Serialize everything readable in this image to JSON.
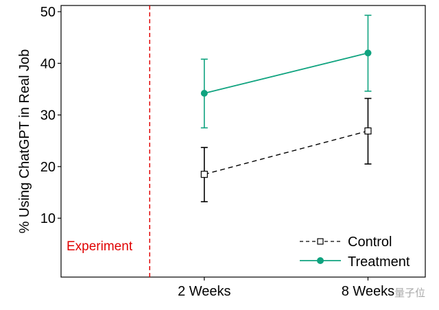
{
  "chart_data": {
    "type": "line",
    "title": "",
    "xlabel": "",
    "ylabel": "% Using ChatGPT in Real Job",
    "x_unit": "weeks",
    "xlim": [
      -3.25,
      10.1
    ],
    "ylim": [
      -1.4,
      51.2
    ],
    "x_ticks": [
      {
        "value": 2,
        "label": "2 Weeks"
      },
      {
        "value": 8,
        "label": "8 Weeks"
      }
    ],
    "y_ticks": [
      10,
      20,
      30,
      40,
      50
    ],
    "grid": false,
    "legend_position": "bottom-right",
    "annotation": {
      "label": "Experiment",
      "x": 0,
      "color": "#e00000",
      "style": "dashed vertical line"
    },
    "series": [
      {
        "name": "Control",
        "color": "#000000",
        "line_style": "dashed",
        "marker": "hollow-square",
        "points": [
          {
            "x": 2,
            "y": 18.5,
            "ci_low": 13.2,
            "ci_high": 23.7
          },
          {
            "x": 8,
            "y": 26.9,
            "ci_low": 20.5,
            "ci_high": 33.2
          }
        ]
      },
      {
        "name": "Treatment",
        "color": "#0fa37f",
        "line_style": "solid",
        "marker": "filled-circle",
        "points": [
          {
            "x": 2,
            "y": 34.2,
            "ci_low": 27.5,
            "ci_high": 40.8
          },
          {
            "x": 8,
            "y": 42.0,
            "ci_low": 34.6,
            "ci_high": 49.3
          }
        ]
      }
    ]
  },
  "watermark": "量子位"
}
